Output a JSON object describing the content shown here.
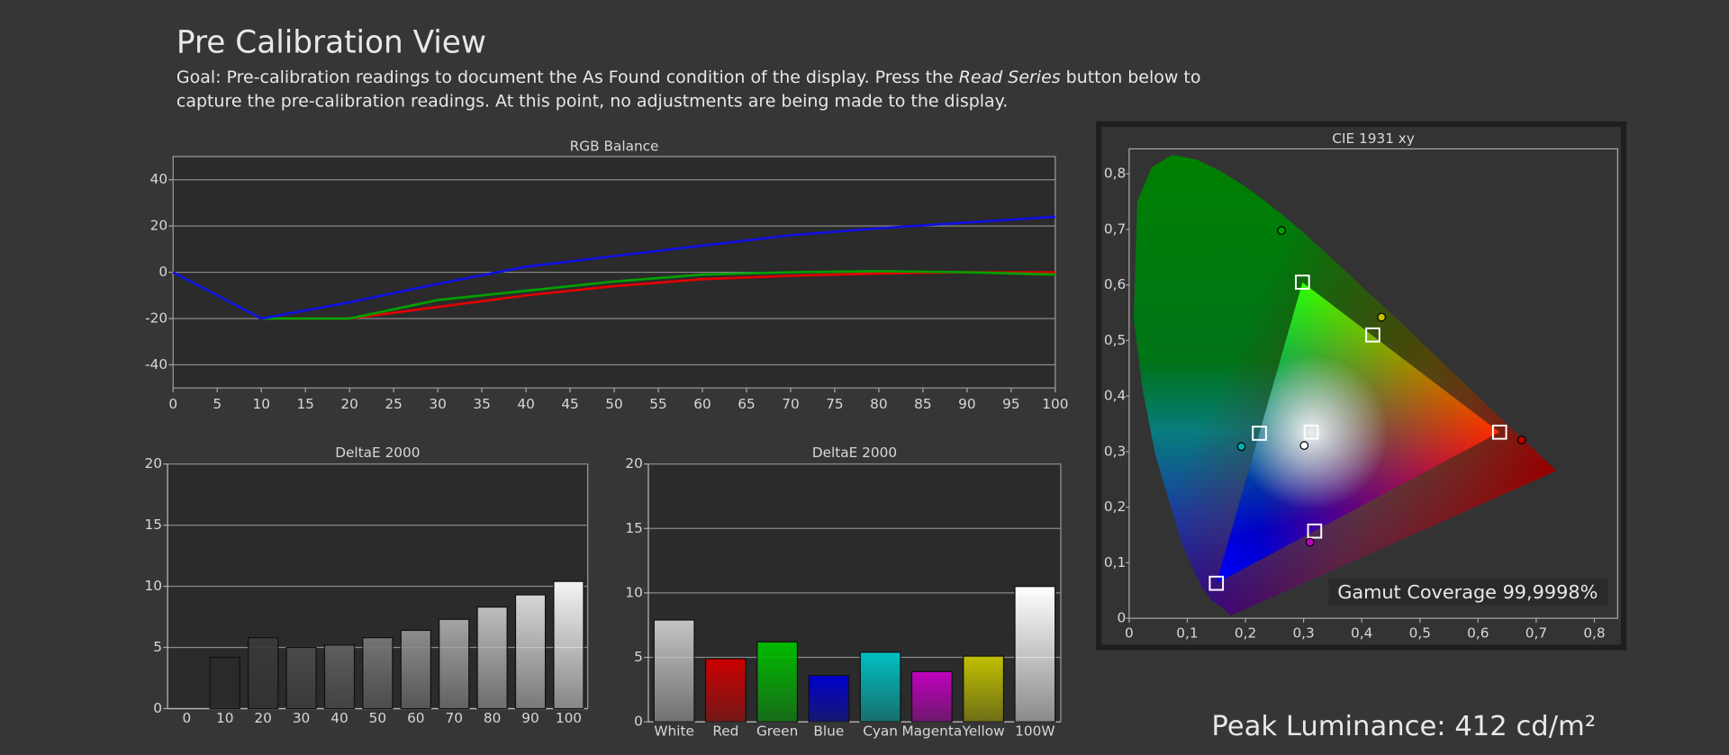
{
  "header": {
    "title": "Pre Calibration View",
    "goal_start": "Goal: Pre-calibration readings to document the As Found condition of the display. Press the ",
    "goal_emphasis": "Read Series",
    "goal_end": " button below to",
    "goal_line2": "capture the pre-calibration readings. At this point, no adjustments are being made to the display."
  },
  "peak_luminance": "Peak Luminance: 412 cd/m²",
  "chart_data": [
    {
      "type": "line",
      "title": "RGB Balance",
      "x": [
        0,
        10,
        20,
        30,
        40,
        50,
        60,
        70,
        80,
        90,
        100
      ],
      "xlim": [
        0,
        100
      ],
      "xticks": [
        0,
        5,
        10,
        15,
        20,
        25,
        30,
        35,
        40,
        45,
        50,
        55,
        60,
        65,
        70,
        75,
        80,
        85,
        90,
        95,
        100
      ],
      "ylim": [
        -50,
        50
      ],
      "yticks": [
        -40,
        -20,
        0,
        20,
        40
      ],
      "grid": true,
      "series": [
        {
          "color": "#e00000",
          "values": [
            0,
            -20,
            -20,
            -15,
            -10,
            -6,
            -3,
            -1.5,
            -0.5,
            0,
            0
          ]
        },
        {
          "color": "#00a000",
          "values": [
            0,
            -20,
            -20,
            -12,
            -8,
            -4,
            -1,
            0,
            0.5,
            0,
            -1
          ]
        },
        {
          "color": "#1010e0",
          "values": [
            0,
            -20,
            -13,
            -5,
            2.4,
            7,
            11.5,
            16,
            19,
            21.5,
            24
          ]
        }
      ]
    },
    {
      "type": "bar",
      "title": "DeltaE 2000",
      "categories": [
        0,
        10,
        20,
        30,
        40,
        50,
        60,
        70,
        80,
        90,
        100
      ],
      "values": [
        0,
        4.2,
        5.8,
        5.0,
        5.2,
        5.8,
        6.4,
        7.3,
        8.3,
        9.3,
        10.4
      ],
      "colors": [
        "#000000",
        "#2a2a2a",
        "#3a3a3a",
        "#4a4a4a",
        "#5e5e5e",
        "#747474",
        "#8c8c8c",
        "#a4a4a4",
        "#bdbdbd",
        "#d6d6d6",
        "#f4f4f4"
      ],
      "ylim": [
        0,
        20
      ],
      "yticks": [
        0,
        5,
        10,
        15,
        20
      ],
      "grid": true
    },
    {
      "type": "bar",
      "title": "DeltaE 2000",
      "categories": [
        "White",
        "Red",
        "Green",
        "Blue",
        "Cyan",
        "Magenta",
        "Yellow",
        "100W"
      ],
      "values": [
        7.9,
        4.9,
        6.2,
        3.6,
        5.4,
        3.9,
        5.1,
        10.5
      ],
      "colors": [
        "#c4c4c4",
        "#cc0000",
        "#00bb00",
        "#0000cc",
        "#00c0c0",
        "#c000c0",
        "#c0c000",
        "#ffffff"
      ],
      "ylim": [
        0,
        20
      ],
      "yticks": [
        0,
        5,
        10,
        15,
        20
      ],
      "grid": true
    },
    {
      "type": "scatter",
      "title": "CIE 1931 xy",
      "xlim": [
        0,
        0.84
      ],
      "ylim": [
        0,
        0.845
      ],
      "xticks": [
        0,
        {
          "value": 0.1,
          "label": "0,1"
        },
        {
          "value": 0.2,
          "label": "0,2"
        },
        {
          "value": 0.3,
          "label": "0,3"
        },
        {
          "value": 0.4,
          "label": "0,4"
        },
        {
          "value": 0.5,
          "label": "0,5"
        },
        {
          "value": 0.6,
          "label": "0,6"
        },
        {
          "value": 0.7,
          "label": "0,7"
        },
        {
          "value": 0.8,
          "label": "0,8"
        }
      ],
      "yticks": [
        0,
        {
          "value": 0.1,
          "label": "0,1"
        },
        {
          "value": 0.2,
          "label": "0,2"
        },
        {
          "value": 0.3,
          "label": "0,3"
        },
        {
          "value": 0.4,
          "label": "0,4"
        },
        {
          "value": 0.5,
          "label": "0,5"
        },
        {
          "value": 0.6,
          "label": "0,6"
        },
        {
          "value": 0.7,
          "label": "0,7"
        },
        {
          "value": 0.8,
          "label": "0,8"
        }
      ],
      "series": [
        {
          "marker": "square",
          "color": "#ffffff",
          "x": [
            0.637,
            0.298,
            0.15,
            0.224,
            0.319,
            0.419,
            0.313
          ],
          "y": [
            0.335,
            0.605,
            0.063,
            0.333,
            0.157,
            0.51,
            0.335
          ]
        },
        {
          "marker": "circle",
          "colors": [
            "#c00000",
            "#00a000",
            "#00b0b0",
            "#ffffff",
            "#c000c0",
            "#c0c000"
          ],
          "x": [
            0.675,
            0.262,
            0.193,
            0.301,
            0.311,
            0.434
          ],
          "y": [
            0.321,
            0.698,
            0.309,
            0.311,
            0.137,
            0.542
          ]
        }
      ],
      "annotations": [
        "Gamut Coverage 99,9998%"
      ]
    }
  ]
}
